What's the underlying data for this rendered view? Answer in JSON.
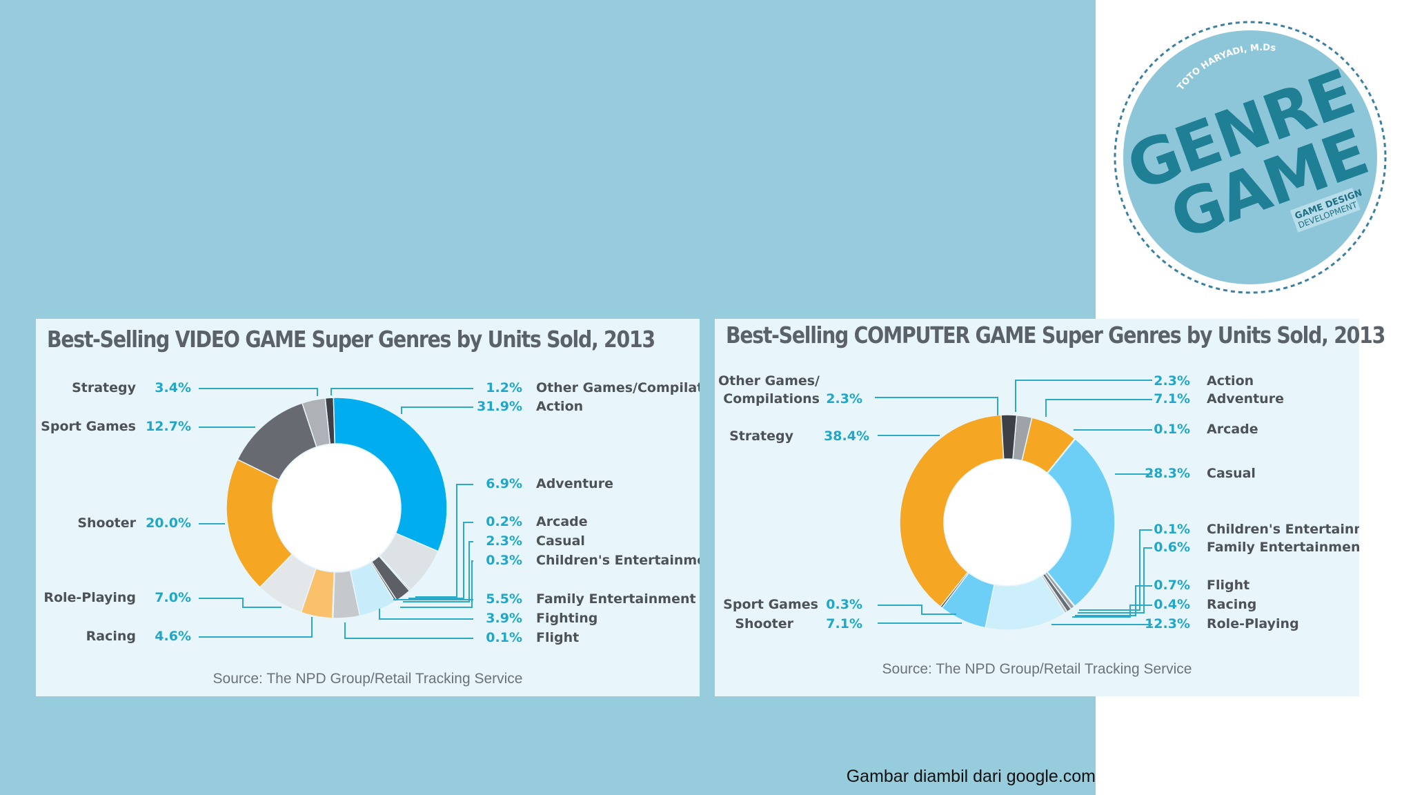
{
  "caption": "Gambar diambil dari google.com",
  "stamp": {
    "author": "TOTO HARYADI, M.Ds",
    "line1": "GENRE",
    "line2": "GAME",
    "sub1": "GAME DESIGN",
    "sub2": "DEVELOPMENT"
  },
  "colors": {
    "background": "#97ccdd",
    "panel": "#e8f6fc",
    "percent_text": "#1fa7c9",
    "leader_line": "#2aa9c9"
  },
  "chart_data": [
    {
      "type": "pie",
      "title": "Best-Selling VIDEO GAME Super Genres by Units Sold, 2013",
      "source": "Source: The NPD Group/Retail Tracking Service",
      "series": [
        {
          "label": "Other Games/Compilations",
          "pct": "1.2%",
          "value": 1.2,
          "color": "#3d4147"
        },
        {
          "label": "Action",
          "pct": "31.9%",
          "value": 31.9,
          "color": "#00aeef"
        },
        {
          "label": "Adventure",
          "pct": "6.9%",
          "value": 6.9,
          "color": "#dde2e6"
        },
        {
          "label": "Arcade",
          "pct": "0.2%",
          "value": 0.2,
          "color": "#9aa0a6"
        },
        {
          "label": "Casual",
          "pct": "2.3%",
          "value": 2.3,
          "color": "#5c6066"
        },
        {
          "label": "Children's Entertainment",
          "pct": "0.3%",
          "value": 0.3,
          "color": "#40454b"
        },
        {
          "label": "Family Entertainment",
          "pct": "5.5%",
          "value": 5.5,
          "color": "#c8ecf9"
        },
        {
          "label": "Fighting",
          "pct": "3.9%",
          "value": 3.9,
          "color": "#c6c9cc"
        },
        {
          "label": "Flight",
          "pct": "0.1%",
          "value": 0.1,
          "color": "#ffffff"
        },
        {
          "label": "Racing",
          "pct": "4.6%",
          "value": 4.6,
          "color": "#fbc06a"
        },
        {
          "label": "Role-Playing",
          "pct": "7.0%",
          "value": 7.0,
          "color": "#e4e7ea"
        },
        {
          "label": "Shooter",
          "pct": "20.0%",
          "value": 20.0,
          "color": "#f5a623"
        },
        {
          "label": "Sport Games",
          "pct": "12.7%",
          "value": 12.7,
          "color": "#676b71"
        },
        {
          "label": "Strategy",
          "pct": "3.4%",
          "value": 3.4,
          "color": "#aeb2b6"
        }
      ]
    },
    {
      "type": "pie",
      "title": "Best-Selling COMPUTER GAME Super Genres by Units Sold, 2013",
      "source": "Source: The NPD Group/Retail Tracking Service",
      "series": [
        {
          "label": "Action",
          "pct": "2.3%",
          "value": 2.3,
          "color": "#9ea3a8"
        },
        {
          "label": "Adventure",
          "pct": "7.1%",
          "value": 7.1,
          "color": "#f5a623"
        },
        {
          "label": "Arcade",
          "pct": "0.1%",
          "value": 0.1,
          "color": "#2f6f8f"
        },
        {
          "label": "Casual",
          "pct": "28.3%",
          "value": 28.3,
          "color": "#6ecff6"
        },
        {
          "label": "Children's Entertainment",
          "pct": "0.1%",
          "value": 0.1,
          "color": "#5c6066"
        },
        {
          "label": "Family Entertainment",
          "pct": "0.6%",
          "value": 0.6,
          "color": "#9aa0a6"
        },
        {
          "label": "Flight",
          "pct": "0.7%",
          "value": 0.7,
          "color": "#6a6e74"
        },
        {
          "label": "Racing",
          "pct": "0.4%",
          "value": 0.4,
          "color": "#b7bbbf"
        },
        {
          "label": "Role-Playing",
          "pct": "12.3%",
          "value": 12.3,
          "color": "#cdeefb"
        },
        {
          "label": "Shooter",
          "pct": "7.1%",
          "value": 7.1,
          "color": "#6ecff6"
        },
        {
          "label": "Sport Games",
          "pct": "0.3%",
          "value": 0.3,
          "color": "#3d4147"
        },
        {
          "label": "Strategy",
          "pct": "38.4%",
          "value": 38.4,
          "color": "#f5a623"
        },
        {
          "label": "Other Games/",
          "label2": "Compilations",
          "pct": "2.3%",
          "value": 2.3,
          "color": "#3d4147"
        }
      ]
    }
  ]
}
